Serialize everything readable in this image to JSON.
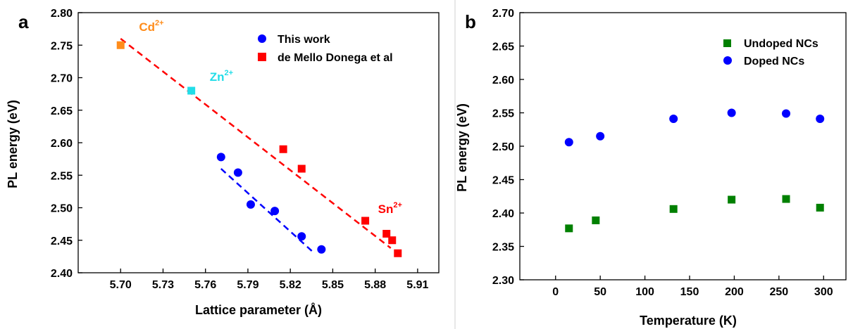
{
  "chart_data": [
    {
      "type": "scatter",
      "panel_label": "a",
      "xlabel": "Lattice parameter (Å)",
      "ylabel": "PL energy (eV)",
      "xlim": [
        5.67,
        5.925
      ],
      "ylim": [
        2.4,
        2.8
      ],
      "xticks": [
        5.7,
        5.73,
        5.76,
        5.79,
        5.82,
        5.85,
        5.88,
        5.91
      ],
      "xtick_labels": [
        "5.70",
        "5.73",
        "5.76",
        "5.79",
        "5.82",
        "5.85",
        "5.88",
        "5.91"
      ],
      "yticks": [
        2.4,
        2.45,
        2.5,
        2.55,
        2.6,
        2.65,
        2.7,
        2.75,
        2.8
      ],
      "ytick_labels": [
        "2.40",
        "2.45",
        "2.50",
        "2.55",
        "2.60",
        "2.65",
        "2.70",
        "2.75",
        "2.80"
      ],
      "legend_position": "top-right",
      "series": [
        {
          "name": "This work",
          "marker": "circle",
          "color": "#0000ff",
          "points": [
            [
              5.771,
              2.578
            ],
            [
              5.783,
              2.554
            ],
            [
              5.792,
              2.505
            ],
            [
              5.809,
              2.495
            ],
            [
              5.828,
              2.456
            ],
            [
              5.842,
              2.436
            ]
          ],
          "fit_line": [
            [
              5.771,
              2.56
            ],
            [
              5.836,
              2.432
            ]
          ]
        },
        {
          "name": "de Mello Donega et al",
          "marker": "square",
          "color": "#ff0000",
          "points": [
            [
              5.815,
              2.59
            ],
            [
              5.828,
              2.56
            ],
            [
              5.873,
              2.48
            ],
            [
              5.888,
              2.46
            ],
            [
              5.892,
              2.45
            ],
            [
              5.896,
              2.43
            ]
          ],
          "fit_line": [
            [
              5.7,
              2.76
            ],
            [
              5.891,
              2.438
            ]
          ]
        },
        {
          "name": "",
          "marker": "square",
          "color": "#ff8c1a",
          "points": [
            [
              5.7,
              2.75
            ]
          ]
        },
        {
          "name": "",
          "marker": "square",
          "color": "#22dde8",
          "points": [
            [
              5.75,
              2.68
            ]
          ]
        }
      ],
      "annotations": [
        {
          "text": "Cd",
          "sup": "2+",
          "color": "#ff8c1a",
          "x": 5.713,
          "y": 2.772
        },
        {
          "text": "Zn",
          "sup": "2+",
          "color": "#22dde8",
          "x": 5.763,
          "y": 2.695
        },
        {
          "text": "Sn",
          "sup": "2+",
          "color": "#ff0000",
          "x": 5.882,
          "y": 2.492
        }
      ]
    },
    {
      "type": "scatter",
      "panel_label": "b",
      "xlabel": "Temperature (K)",
      "ylabel": "PL energy (eV)",
      "xlim": [
        -40,
        325
      ],
      "ylim": [
        2.3,
        2.7
      ],
      "xticks": [
        0,
        50,
        100,
        150,
        200,
        250,
        300
      ],
      "xtick_labels": [
        "0",
        "50",
        "100",
        "150",
        "200",
        "250",
        "300"
      ],
      "yticks": [
        2.3,
        2.35,
        2.4,
        2.45,
        2.5,
        2.55,
        2.6,
        2.65,
        2.7
      ],
      "ytick_labels": [
        "2.30",
        "2.35",
        "2.40",
        "2.45",
        "2.50",
        "2.55",
        "2.60",
        "2.65",
        "2.70"
      ],
      "legend_position": "top-right",
      "series": [
        {
          "name": "Undoped NCs",
          "marker": "square",
          "color": "#008000",
          "points": [
            [
              15,
              2.377
            ],
            [
              45,
              2.389
            ],
            [
              132,
              2.406
            ],
            [
              197,
              2.42
            ],
            [
              258,
              2.421
            ],
            [
              296,
              2.408
            ]
          ]
        },
        {
          "name": "Doped NCs",
          "marker": "circle",
          "color": "#0000ff",
          "points": [
            [
              15,
              2.506
            ],
            [
              50,
              2.515
            ],
            [
              132,
              2.541
            ],
            [
              197,
              2.55
            ],
            [
              258,
              2.549
            ],
            [
              296,
              2.541
            ]
          ]
        }
      ]
    }
  ]
}
